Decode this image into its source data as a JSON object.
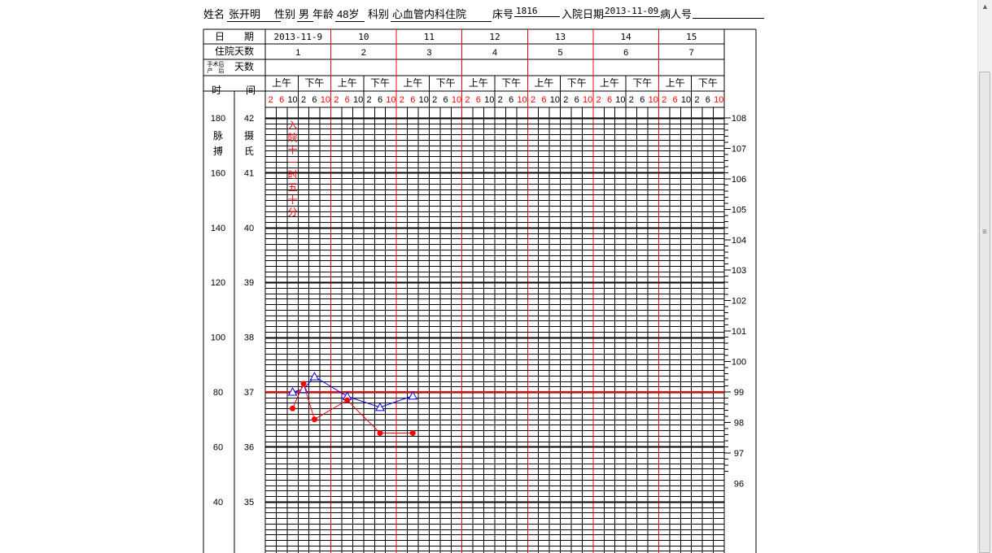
{
  "patient": {
    "name_label": "姓名",
    "name": "张开明",
    "sex_label": "性别",
    "sex": "男",
    "age_label": "年龄",
    "age": "48岁",
    "dept_label": "科别",
    "dept": "心血管内科住院",
    "bed_label": "床号",
    "bed": "1816",
    "admit_label": "入院日期",
    "admit_date": "2013-11-09",
    "patient_no_label": "病人号",
    "patient_no": ""
  },
  "table": {
    "row_date_label": "日　　期",
    "row_hospital_days_label": "住院天数",
    "row_postop_label_small": "手术后\n产　后",
    "row_postop_label": "天数",
    "row_time_label_1": "时",
    "row_time_label_2": "间",
    "dates": [
      "2013-11-9",
      "10",
      "11",
      "12",
      "13",
      "14",
      "15"
    ],
    "hospital_days": [
      "1",
      "2",
      "3",
      "4",
      "5",
      "6",
      "7"
    ],
    "am_label": "上午",
    "pm_label": "下午",
    "hours": [
      "2",
      "6",
      "10",
      "2",
      "6",
      "10"
    ],
    "hour_colors": [
      "red",
      "red",
      "black",
      "black",
      "black",
      "red"
    ],
    "pulse_col_labels": [
      "脉",
      "搏"
    ],
    "temp_col_labels": [
      "摄",
      "氏"
    ],
    "pulse_ticks": [
      "180",
      "160",
      "140",
      "120",
      "100",
      "80",
      "60",
      "40"
    ],
    "temp_ticks": [
      "42",
      "41",
      "40",
      "39",
      "38",
      "37",
      "36",
      "35"
    ],
    "right_ticks": [
      "108",
      "107",
      "106",
      "105",
      "104",
      "103",
      "102",
      "101",
      "100",
      "99",
      "98",
      "97",
      "96"
    ],
    "admission_note": "入院十一时五十分"
  },
  "chart_data": {
    "type": "line",
    "x_slot_labels": [
      "11-9 2",
      "11-9 6",
      "11-9 10",
      "11-9 14",
      "11-9 18",
      "11-9 22",
      "11-10 2",
      "11-10 6",
      "11-10 10",
      "11-10 14",
      "11-10 18",
      "11-10 22",
      "11-11 2",
      "11-11 6"
    ],
    "series": [
      {
        "color": "#0000ff",
        "marker": "triangle",
        "points": [
          {
            "slot": 2,
            "temp": 37.0
          },
          {
            "slot": 3,
            "temp": 37.05
          },
          {
            "slot": 4,
            "temp": 37.28
          },
          {
            "slot": 7,
            "temp": 36.92
          },
          {
            "slot": 10,
            "temp": 36.72
          },
          {
            "slot": 13,
            "temp": 36.93
          }
        ]
      },
      {
        "color": "#ff0000",
        "marker": "dot",
        "points": [
          {
            "slot": 2,
            "pulse": 74
          },
          {
            "slot": 3,
            "pulse": 83
          },
          {
            "slot": 4,
            "pulse": 70
          },
          {
            "slot": 7,
            "pulse": 77
          },
          {
            "slot": 10,
            "pulse": 65
          },
          {
            "slot": 13,
            "pulse": 65
          }
        ]
      }
    ],
    "pulse_range": [
      40,
      180
    ],
    "temp_range": [
      35,
      42
    ],
    "reference_temp": 37
  }
}
